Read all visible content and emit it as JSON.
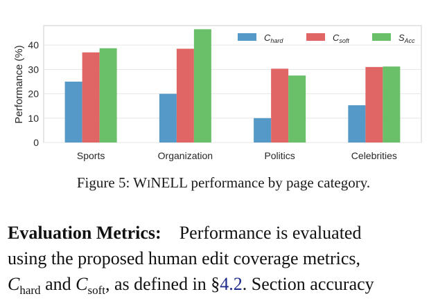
{
  "chart_data": {
    "type": "bar",
    "categories": [
      "Sports",
      "Organization",
      "Politics",
      "Celebrities"
    ],
    "series": [
      {
        "name": "C_hard",
        "color": "#5499c7",
        "values": [
          25,
          20,
          10,
          15.3
        ]
      },
      {
        "name": "C_soft",
        "color": "#e06666",
        "values": [
          37,
          38.5,
          30.3,
          31
        ]
      },
      {
        "name": "S_Acc",
        "color": "#6abf69",
        "values": [
          38.7,
          46.5,
          27.5,
          31.2
        ]
      }
    ],
    "legend": [
      {
        "main": "C",
        "sub": "hard"
      },
      {
        "main": "C",
        "sub": "soft"
      },
      {
        "main": "S",
        "sub": "Acc"
      }
    ],
    "yticks": [
      0,
      10,
      20,
      30,
      40
    ],
    "ylim": [
      0,
      48
    ],
    "ylabel": "Performance (%)",
    "xlabel": "",
    "grid": true,
    "legend_position": "top-right"
  },
  "caption": {
    "prefix": "Figure 5: W",
    "smallcaps": "I",
    "name_rest": "NELL",
    "suffix": " performance by page category."
  },
  "paragraph": {
    "heading": "Evaluation Metrics:",
    "line1": "Performance is evaluated",
    "line2": "using the proposed human edit coverage metrics,",
    "c_main": "C",
    "c_hard_sub": "hard",
    "and_word": "and",
    "c_soft_sub": "soft",
    "defined_text": ", as defined in §",
    "section_ref": "4.2",
    "line3_end": ". Section accuracy"
  }
}
